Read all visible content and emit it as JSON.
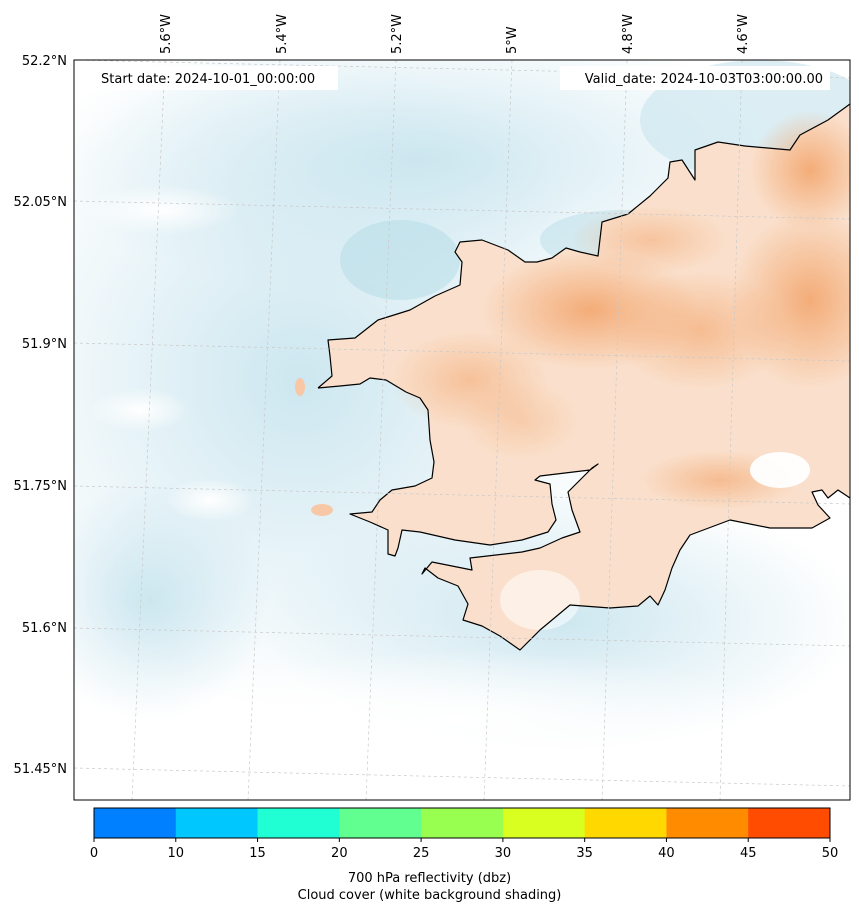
{
  "header": {
    "start_label": "Start date: 2024-10-01_00:00:00",
    "valid_label": "Valid_date: 2024-10-03T03:00:00.00"
  },
  "lon_ticks": [
    "5.6°W",
    "5.4°W",
    "5.2°W",
    "5°W",
    "4.8°W",
    "4.6°W"
  ],
  "lat_ticks": [
    "52.2°N",
    "52.05°N",
    "51.9°N",
    "51.75°N",
    "51.6°N",
    "51.45°N"
  ],
  "colorbar": {
    "ticks": [
      "0",
      "10",
      "15",
      "20",
      "25",
      "30",
      "35",
      "40",
      "45",
      "50"
    ],
    "colors": [
      "#0080ff",
      "#00c8ff",
      "#20ffd4",
      "#60ff90",
      "#98ff50",
      "#d8ff20",
      "#ffd800",
      "#ff8c00",
      "#ff4c00"
    ],
    "label": "700 hPa reflectivity (dbz)",
    "sublabel": "Cloud cover (white background shading)"
  },
  "map_colors": {
    "land": "#f9dcc6",
    "land_warm": "#f3a872",
    "sea_cloud": "#d8edf3",
    "sea_clear": "#ffffff",
    "coastline": "#000000",
    "gridline": "#c8c8c8"
  }
}
